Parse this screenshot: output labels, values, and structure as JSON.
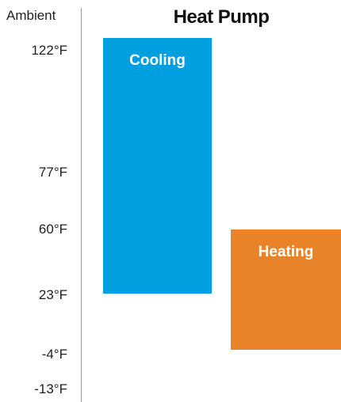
{
  "chart_data": {
    "type": "bar",
    "title": "Heat Pump",
    "ylabel": "Ambient",
    "y_ticks": [
      "122°F",
      "77°F",
      "60°F",
      "23°F",
      "-4°F",
      "-13°F"
    ],
    "series": [
      {
        "label": "Cooling",
        "low": 23,
        "high": 122,
        "color": "#00a0e0"
      },
      {
        "label": "Heating",
        "low": -4,
        "high": 60,
        "color": "#e8832a"
      }
    ]
  }
}
